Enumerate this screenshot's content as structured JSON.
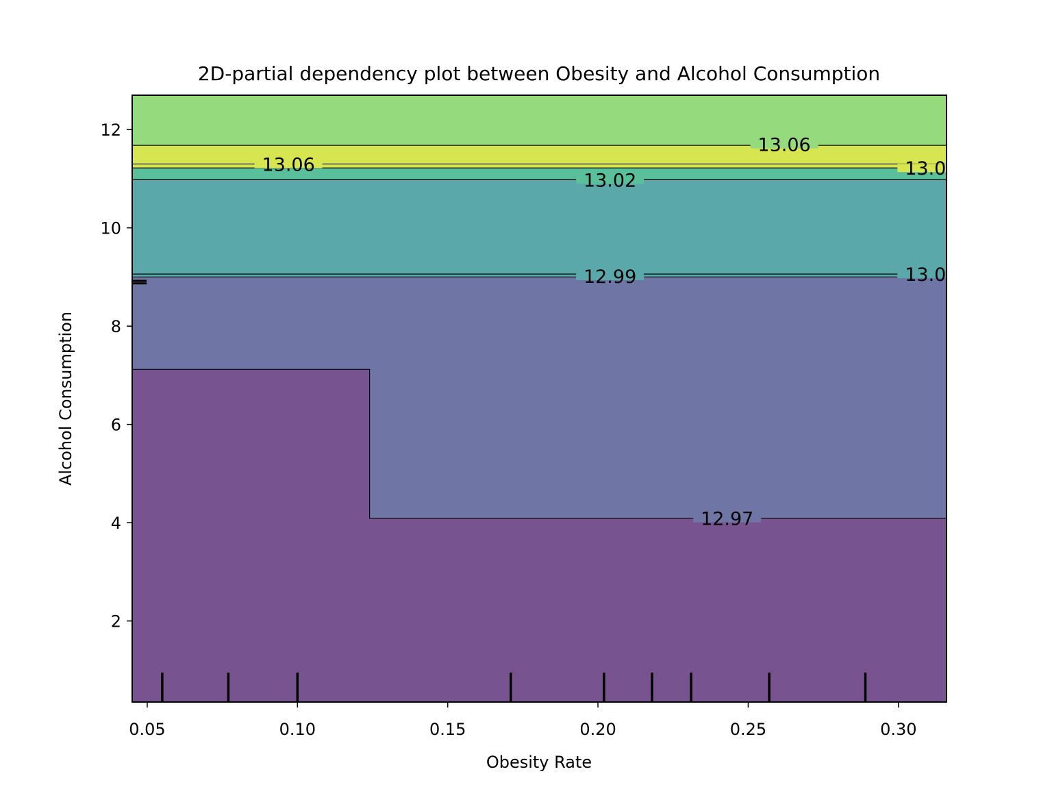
{
  "chart_data": {
    "type": "contour",
    "title": "2D-partial dependency plot between Obesity and Alcohol Consumption",
    "xlabel": "Obesity Rate",
    "ylabel": "Alcohol Consumption",
    "xlim": [
      0.045,
      0.316
    ],
    "ylim": [
      0.35,
      12.7
    ],
    "xticks": [
      0.05,
      0.1,
      0.15,
      0.2,
      0.25,
      0.3
    ],
    "xtick_labels": [
      "0.05",
      "0.10",
      "0.15",
      "0.20",
      "0.25",
      "0.30"
    ],
    "yticks": [
      2,
      4,
      6,
      8,
      10,
      12
    ],
    "ytick_labels": [
      "2",
      "4",
      "6",
      "8",
      "10",
      "12"
    ],
    "regions": [
      {
        "level": "12.94-12.97",
        "color": "#77548f",
        "y_low": 0.35,
        "y_high_left": 7.12,
        "y_high_right": 4.09,
        "x_step": 0.124
      },
      {
        "level": "12.97-13.00",
        "color": "#6f76a6",
        "y_low_left": 7.12,
        "y_low_right": 4.09,
        "y_high": 9.0
      },
      {
        "level": "13.00-13.03",
        "color": "#5aa8aa",
        "y_low": 9.0,
        "y_high": 10.98
      },
      {
        "level": "13.03-13.06",
        "color": "#5ac09b",
        "y_low": 10.98,
        "y_high": 11.22
      },
      {
        "level": "13.06-13.09",
        "color": "#d7e550",
        "y_low": 11.22,
        "y_high": 11.68
      },
      {
        "level": "13.09-13.12",
        "color": "#95db7e",
        "y_low": 11.68,
        "y_high": 12.7
      }
    ],
    "contour_labels": [
      {
        "text": "13.06",
        "x": 0.097,
        "y": 11.3
      },
      {
        "text": "13.06",
        "x": 0.262,
        "y": 11.7
      },
      {
        "text": "13.0",
        "x": 0.309,
        "y": 11.22
      },
      {
        "text": "13.02",
        "x": 0.204,
        "y": 10.98
      },
      {
        "text": "12.99",
        "x": 0.204,
        "y": 9.02
      },
      {
        "text": "13.0",
        "x": 0.309,
        "y": 9.06
      },
      {
        "text": "12.97",
        "x": 0.243,
        "y": 4.09
      }
    ],
    "x_deciles": [
      0.055,
      0.077,
      0.1,
      0.171,
      0.202,
      0.218,
      0.231,
      0.257,
      0.289
    ],
    "y_deciles": [
      8.87,
      8.92
    ]
  }
}
